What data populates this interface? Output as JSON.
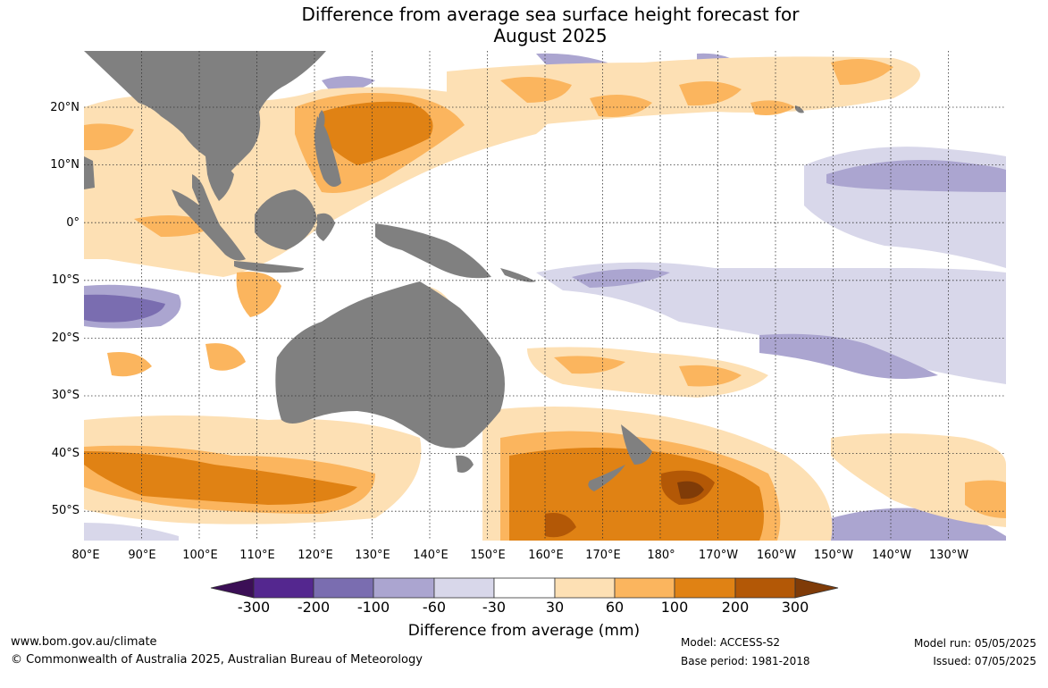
{
  "title_line1": "Difference from average sea surface height forecast for",
  "title_line2": "August 2025",
  "map": {
    "lat_labels": [
      "20°N",
      "10°N",
      "0°",
      "10°S",
      "20°S",
      "30°S",
      "40°S",
      "50°S"
    ],
    "lon_labels": [
      "80°E",
      "90°E",
      "100°E",
      "110°E",
      "120°E",
      "130°E",
      "140°E",
      "150°E",
      "160°E",
      "170°E",
      "180°",
      "170°W",
      "160°W",
      "150°W",
      "140°W",
      "130°W"
    ],
    "colors": {
      "land": "#808080",
      "neg300": "#3b0f56",
      "neg200": "#54278f",
      "neg100": "#7a6db0",
      "neg60": "#aba5d0",
      "neg30": "#d8d7ea",
      "neutral": "#ffffff",
      "pos30": "#fde0b4",
      "pos60": "#fbb55e",
      "pos100": "#e08214",
      "pos200": "#b35806",
      "pos300": "#7f3b08"
    }
  },
  "colorbar": {
    "labels": [
      "-300",
      "-200",
      "-100",
      "-60",
      "-30",
      "30",
      "60",
      "100",
      "200",
      "300"
    ],
    "title": "Difference from average (mm)"
  },
  "footer": {
    "website": "www.bom.gov.au/climate",
    "copyright": "© Commonwealth of Australia 2025, Australian Bureau of Meteorology",
    "model": "Model: ACCESS-S2",
    "base_period": "Base period: 1981-2018",
    "model_run": "Model run: 05/05/2025",
    "issued": "Issued: 07/05/2025"
  }
}
